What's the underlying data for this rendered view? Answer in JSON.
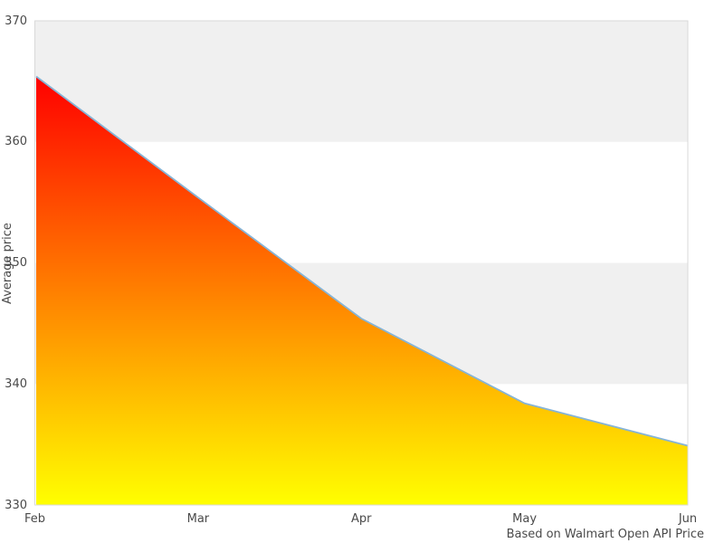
{
  "chart_data": {
    "type": "area",
    "title": "",
    "categories": [
      "Feb",
      "Mar",
      "Apr",
      "May",
      "Jun"
    ],
    "values": [
      365.4,
      355.4,
      345.4,
      338.4,
      334.9
    ],
    "xlabel": "",
    "ylabel": "Average price",
    "ylim": [
      330,
      370
    ],
    "yticks": [
      330,
      340,
      350,
      360,
      370
    ],
    "caption": "Based on Walmart Open API Price",
    "legend": "none",
    "grid": "alternating-horizontal-bands",
    "colors": {
      "area_gradient_top": "#ff0000",
      "area_gradient_bottom": "#ffff00",
      "line": "#86b4d6",
      "band_fill": "#f0f0f0",
      "plot_border": "#d9d9d9",
      "text": "#4a4a4a",
      "background": "#ffffff"
    }
  }
}
